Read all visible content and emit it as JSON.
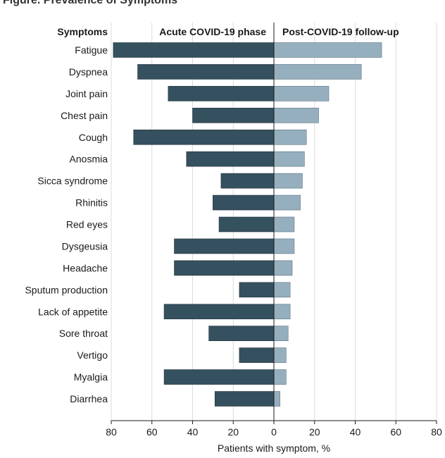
{
  "header_fragment": "Figure. Prevalence of Symptoms",
  "chart_data": {
    "type": "bar",
    "orientation": "horizontal-diverging",
    "column_headers": {
      "symptoms": "Symptoms",
      "left": "Acute COVID-19 phase",
      "right": "Post-COVID-19 follow-up"
    },
    "categories": [
      "Fatigue",
      "Dyspnea",
      "Joint pain",
      "Chest pain",
      "Cough",
      "Anosmia",
      "Sicca syndrome",
      "Rhinitis",
      "Red eyes",
      "Dysgeusia",
      "Headache",
      "Sputum production",
      "Lack of appetite",
      "Sore throat",
      "Vertigo",
      "Myalgia",
      "Diarrhea"
    ],
    "series": [
      {
        "name": "Acute COVID-19 phase",
        "color": "#35505e",
        "values": [
          79,
          67,
          52,
          40,
          69,
          43,
          26,
          30,
          27,
          49,
          49,
          17,
          54,
          32,
          17,
          54,
          29
        ]
      },
      {
        "name": "Post-COVID-19 follow-up",
        "color": "#96afbf",
        "values": [
          53,
          43,
          27,
          22,
          16,
          15,
          14,
          13,
          10,
          10,
          9,
          8,
          8,
          7,
          6,
          6,
          3
        ]
      }
    ],
    "x_ticks": [
      "80",
      "60",
      "40",
      "20",
      "0",
      "20",
      "40",
      "60",
      "80"
    ],
    "xlabel": "Patients with symptom, %",
    "xlim": [
      -80,
      80
    ],
    "grid": "vertical"
  }
}
